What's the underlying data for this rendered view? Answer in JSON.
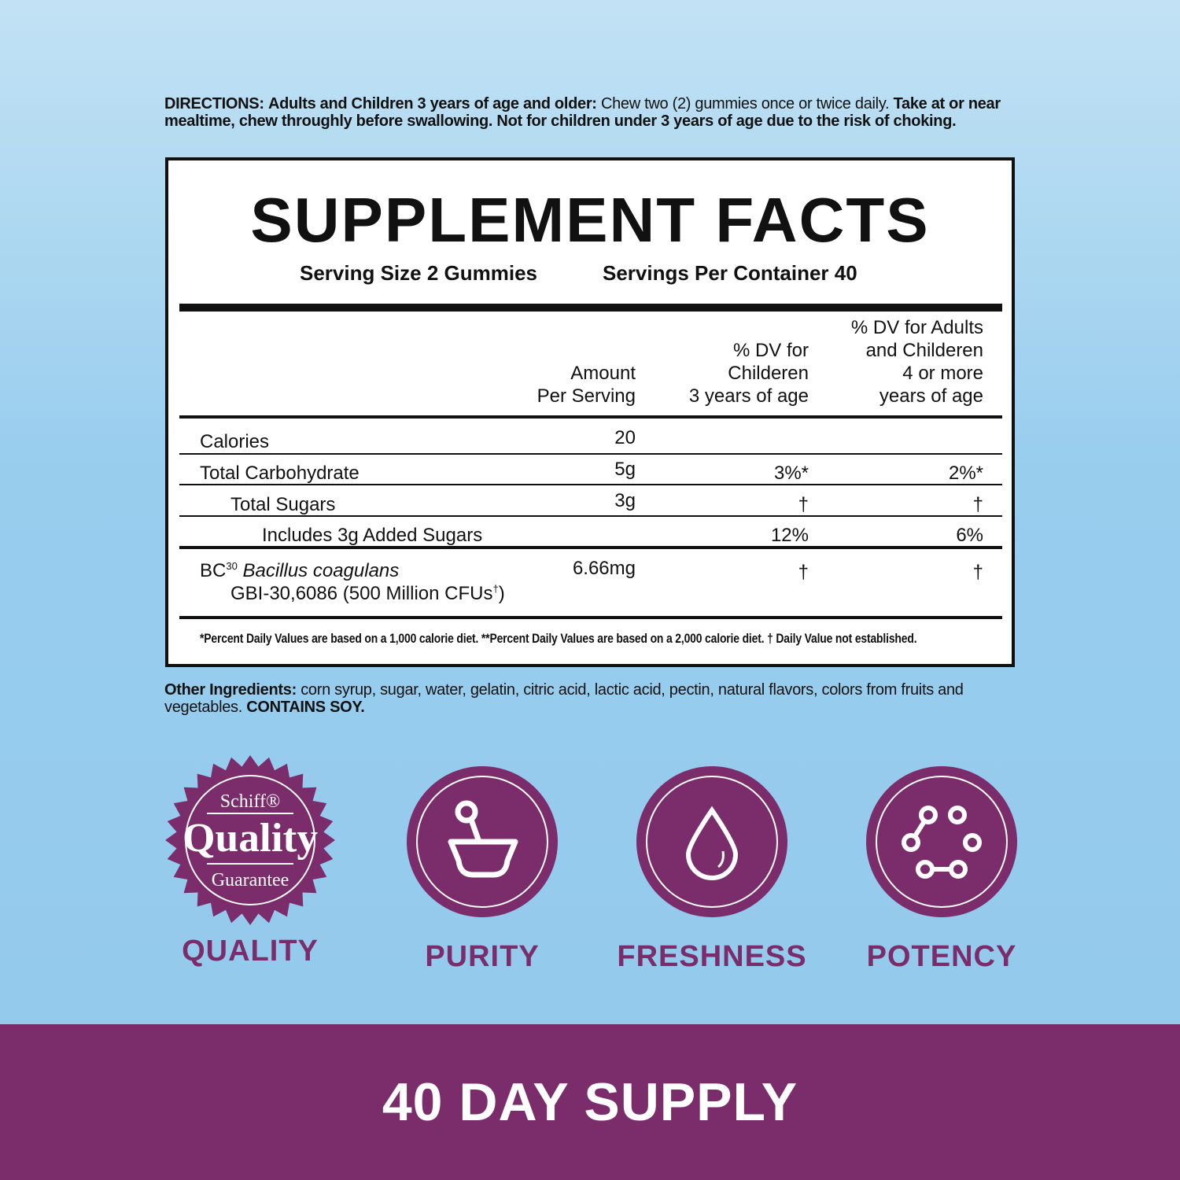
{
  "directions": {
    "label": "DIRECTIONS:",
    "bold_lead": "Adults and Children 3 years of age and older:",
    "regular": "Chew two (2) gummies once or twice daily.",
    "bold_rest": "Take at or near mealtime, chew throughly before swallowing. Not for children under 3 years of age due to the risk of choking."
  },
  "facts": {
    "title": "SUPPLEMENT FACTS",
    "serving_size": "Serving Size 2 Gummies",
    "servings_per_container": "Servings Per Container 40",
    "headers": {
      "amount": [
        "Amount",
        "Per Serving"
      ],
      "dv_children": [
        "% DV for",
        "Childeren",
        "3 years of age"
      ],
      "dv_adults": [
        "% DV for Adults",
        "and Childeren",
        "4 or more",
        "years of age"
      ]
    },
    "rows": [
      {
        "name": "Calories",
        "amount": "20",
        "dv_children": "",
        "dv_adults": ""
      },
      {
        "name": "Total Carbohydrate",
        "amount": "5g",
        "dv_children": "3%*",
        "dv_adults": "2%*"
      },
      {
        "name": "Total Sugars",
        "amount": "3g",
        "dv_children": "†",
        "dv_adults": "†"
      },
      {
        "name": "Includes 3g Added Sugars",
        "amount": "",
        "dv_children": "12%",
        "dv_adults": "6%"
      }
    ],
    "probiotic": {
      "prefix": "BC",
      "sup": "30",
      "italic": "Bacillus coagulans",
      "line2": "GBI-30,6086 (500 Million CFUs",
      "dagger": "†",
      ")": ")",
      "amount": "6.66mg",
      "dv_children": "†",
      "dv_adults": "†"
    },
    "footnote": "*Percent Daily Values are based on a 1,000 calorie diet.   **Percent Daily Values are based on a 2,000 calorie diet.   † Daily Value not established."
  },
  "other_ingredients": {
    "label": "Other Ingredients:",
    "text": "corn syrup, sugar, water, gelatin, citric acid, lactic acid, pectin, natural flavors, colors from fruits and vegetables.",
    "contains": "CONTAINS SOY."
  },
  "badges": [
    {
      "icon": "quality-seal-icon",
      "label": "QUALITY",
      "seal": [
        "Schiff®",
        "Quality",
        "Guarantee"
      ]
    },
    {
      "icon": "mortar-pestle-icon",
      "label": "PURITY"
    },
    {
      "icon": "water-drop-icon",
      "label": "FRESHNESS"
    },
    {
      "icon": "molecule-icon",
      "label": "POTENCY"
    }
  ],
  "banner": "40 DAY SUPPLY",
  "colors": {
    "brand_purple": "#7a2d6a",
    "background_blue": "#93c9ec"
  }
}
